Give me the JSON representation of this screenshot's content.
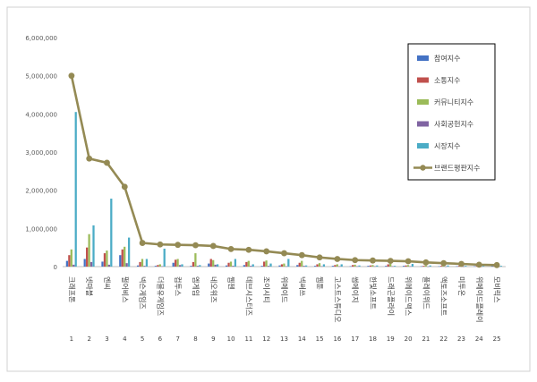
{
  "chart_data": {
    "type": "bar+line",
    "title": "",
    "xlabel": "",
    "ylabel": "",
    "ylim": [
      0,
      6000000
    ],
    "yticks": [
      "0",
      "1,000,000",
      "2,000,000",
      "3,000,000",
      "4,000,000",
      "5,000,000",
      "6,000,000"
    ],
    "ytick_values": [
      0,
      1000000,
      2000000,
      3000000,
      4000000,
      5000000,
      6000000
    ],
    "grid": false,
    "legend_position": "top-right",
    "categories": [
      "크래프톤",
      "넷마블",
      "엔씨",
      "펄어비스",
      "넥슨게임즈",
      "더블유게임즈",
      "컴투스",
      "엠게임",
      "네오위즈",
      "웹젠",
      "데브시스터즈",
      "조이시티",
      "위메이드",
      "넥써쓰",
      "웹툰",
      "고스트스튜디오",
      "썸에이지",
      "한빛소프트",
      "드래곤플라이",
      "위메이드맥스",
      "플레이위드",
      "액토즈소프트",
      "미투온",
      "위메이드플레이",
      "모비릭스"
    ],
    "ranks": [
      "1",
      "2",
      "3",
      "4",
      "5",
      "6",
      "7",
      "8",
      "9",
      "10",
      "11",
      "12",
      "13",
      "14",
      "15",
      "16",
      "17",
      "18",
      "19",
      "20",
      "21",
      "22",
      "23",
      "24",
      "25"
    ],
    "series": [
      {
        "name": "참여지수",
        "kind": "bar",
        "color": "#4472c4",
        "values": [
          150000,
          200000,
          130000,
          300000,
          30000,
          20000,
          100000,
          20000,
          80000,
          30000,
          40000,
          20000,
          30000,
          40000,
          20000,
          20000,
          10000,
          20000,
          20000,
          20000,
          10000,
          10000,
          10000,
          10000,
          10000
        ]
      },
      {
        "name": "소통지수",
        "kind": "bar",
        "color": "#c0504d",
        "values": [
          300000,
          500000,
          350000,
          450000,
          120000,
          40000,
          180000,
          120000,
          200000,
          100000,
          120000,
          130000,
          60000,
          100000,
          60000,
          40000,
          40000,
          30000,
          60000,
          30000,
          20000,
          20000,
          20000,
          20000,
          10000
        ]
      },
      {
        "name": "커뮤니티지수",
        "kind": "bar",
        "color": "#9bbb59",
        "values": [
          450000,
          850000,
          420000,
          520000,
          200000,
          60000,
          200000,
          350000,
          170000,
          130000,
          150000,
          160000,
          80000,
          150000,
          90000,
          60000,
          50000,
          40000,
          70000,
          40000,
          30000,
          30000,
          20000,
          20000,
          20000
        ]
      },
      {
        "name": "사회공헌지수",
        "kind": "bar",
        "color": "#8064a2",
        "values": [
          50000,
          120000,
          50000,
          90000,
          20000,
          10000,
          40000,
          20000,
          50000,
          20000,
          20000,
          20000,
          10000,
          20000,
          10000,
          10000,
          10000,
          10000,
          10000,
          10000,
          5000,
          5000,
          5000,
          5000,
          5000
        ]
      },
      {
        "name": "시장지수",
        "kind": "bar",
        "color": "#4bacc6",
        "values": [
          4050000,
          1080000,
          1780000,
          760000,
          200000,
          470000,
          60000,
          40000,
          60000,
          200000,
          60000,
          80000,
          200000,
          30000,
          60000,
          60000,
          30000,
          30000,
          20000,
          70000,
          30000,
          30000,
          20000,
          20000,
          20000
        ]
      },
      {
        "name": "브랜드평판지수",
        "kind": "line",
        "color": "#948a54",
        "values": [
          5000000,
          2830000,
          2720000,
          2090000,
          620000,
          580000,
          570000,
          560000,
          540000,
          460000,
          440000,
          400000,
          350000,
          300000,
          240000,
          200000,
          170000,
          160000,
          150000,
          140000,
          110000,
          90000,
          70000,
          50000,
          40000
        ]
      }
    ]
  }
}
